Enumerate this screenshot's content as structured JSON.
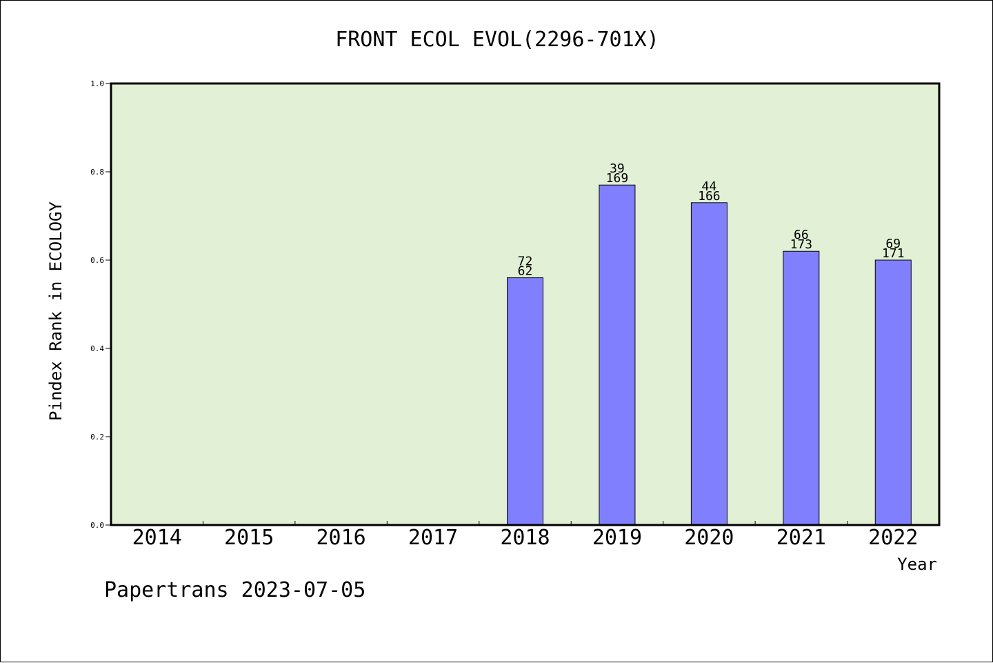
{
  "chart_data": {
    "type": "bar",
    "title": "FRONT ECOL EVOL(2296-701X)",
    "xlabel": "Year",
    "ylabel": "Pindex Rank in ECOLOGY",
    "categories": [
      "2014",
      "2015",
      "2016",
      "2017",
      "2018",
      "2019",
      "2020",
      "2021",
      "2022"
    ],
    "values": [
      null,
      null,
      null,
      null,
      0.56,
      0.77,
      0.73,
      0.62,
      0.6
    ],
    "bar_labels_top": [
      "",
      "",
      "",
      "",
      "72",
      "39",
      "44",
      "66",
      "69"
    ],
    "bar_labels_bottom": [
      "",
      "",
      "",
      "",
      "62",
      "169",
      "166",
      "173",
      "171"
    ],
    "ylim": [
      0,
      1.0
    ],
    "yticks": [
      "0.0",
      "0.2",
      "0.4",
      "0.6",
      "0.8",
      "1.0"
    ],
    "grid": false,
    "colors": {
      "plot_background": "#e2f0d6",
      "bar_fill": "#8080ff",
      "bar_edge": "#000000"
    }
  },
  "footer": {
    "text": "Papertrans 2023-07-05"
  }
}
